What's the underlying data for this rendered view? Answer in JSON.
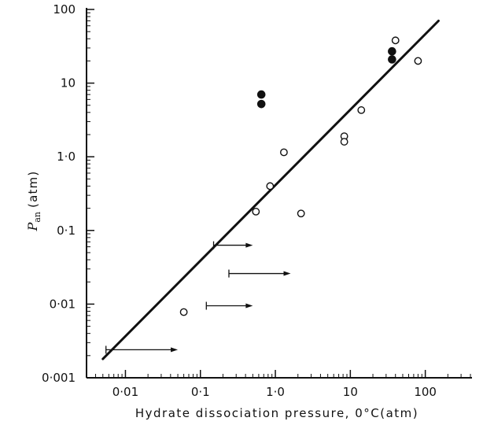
{
  "chart_data": {
    "type": "scatter",
    "xlabel": "Hydrate dissociation pressure, 0°C(atm)",
    "ylabel": {
      "symbol": "P",
      "subscript": "an",
      "unit": "(atm)"
    },
    "x_scale": "log",
    "y_scale": "log",
    "xlim": [
      0.0035,
      600
    ],
    "ylim": [
      0.001,
      100
    ],
    "x_ticks": [
      {
        "value": 0.01,
        "label": "0·01"
      },
      {
        "value": 0.1,
        "label": "0·1"
      },
      {
        "value": 1,
        "label": "1·0"
      },
      {
        "value": 10,
        "label": "10"
      },
      {
        "value": 100,
        "label": "100"
      }
    ],
    "y_ticks": [
      {
        "value": 0.001,
        "label": "0·001"
      },
      {
        "value": 0.01,
        "label": "0·01"
      },
      {
        "value": 0.1,
        "label": "0·1"
      },
      {
        "value": 1,
        "label": "1·0"
      },
      {
        "value": 10,
        "label": "10"
      },
      {
        "value": 100,
        "label": "100"
      }
    ],
    "grid": false,
    "series": [
      {
        "marker": "open-circle",
        "points": [
          [
            0.06,
            0.0078
          ],
          [
            0.55,
            0.18
          ],
          [
            0.85,
            0.4
          ],
          [
            1.3,
            1.15
          ],
          [
            2.2,
            0.17
          ],
          [
            8.3,
            1.9
          ],
          [
            8.3,
            1.6
          ],
          [
            14,
            4.3
          ],
          [
            40,
            38
          ],
          [
            80,
            20
          ]
        ]
      },
      {
        "marker": "filled-circle",
        "points": [
          [
            0.65,
            7
          ],
          [
            0.65,
            5.2
          ],
          [
            36,
            27
          ],
          [
            36,
            21
          ]
        ]
      }
    ],
    "lower_bounds": [
      {
        "x_from": 0.0055,
        "x_to": 0.05,
        "y": 0.0024
      },
      {
        "x_from": 0.12,
        "x_to": 0.5,
        "y": 0.0095
      },
      {
        "x_from": 0.24,
        "x_to": 1.6,
        "y": 0.026
      },
      {
        "x_from": 0.15,
        "x_to": 0.5,
        "y": 0.063
      }
    ],
    "fit_line": {
      "x": [
        0.005,
        150
      ],
      "y": [
        0.0018,
        70
      ]
    }
  }
}
